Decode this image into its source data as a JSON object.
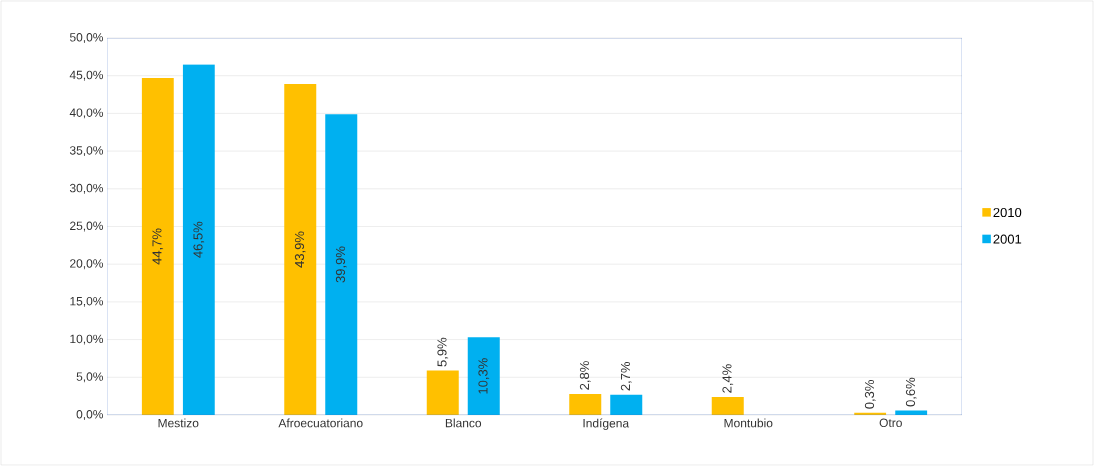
{
  "chart_data": {
    "type": "bar",
    "categories": [
      "Mestizo",
      "Afroecuatoriano",
      "Blanco",
      "Indígena",
      "Montubio",
      "Otro"
    ],
    "series": [
      {
        "name": "2010",
        "color": "#ffc000",
        "values": [
          44.7,
          43.9,
          5.9,
          2.8,
          2.4,
          0.3
        ],
        "value_labels": [
          "44,7%",
          "43,9%",
          "5,9%",
          "2,8%",
          "2,4%",
          "0,3%"
        ]
      },
      {
        "name": "2001",
        "color": "#00b0f0",
        "values": [
          46.5,
          39.9,
          10.3,
          2.7,
          null,
          0.6
        ],
        "value_labels": [
          "46,5%",
          "39,9%",
          "10,3%",
          "2,7%",
          null,
          "0,6%"
        ]
      }
    ],
    "ylim": [
      0,
      50
    ],
    "yticks": [
      {
        "value": 0,
        "label": "0,0%"
      },
      {
        "value": 5,
        "label": "5,0%"
      },
      {
        "value": 10,
        "label": "10,0%"
      },
      {
        "value": 15,
        "label": "15,0%"
      },
      {
        "value": 20,
        "label": "20,0%"
      },
      {
        "value": 25,
        "label": "25,0%"
      },
      {
        "value": 30,
        "label": "30,0%"
      },
      {
        "value": 35,
        "label": "35,0%"
      },
      {
        "value": 40,
        "label": "40,0%"
      },
      {
        "value": 45,
        "label": "45,0%"
      },
      {
        "value": 50,
        "label": "50,0%"
      }
    ],
    "grid": "y",
    "legend": "right"
  }
}
